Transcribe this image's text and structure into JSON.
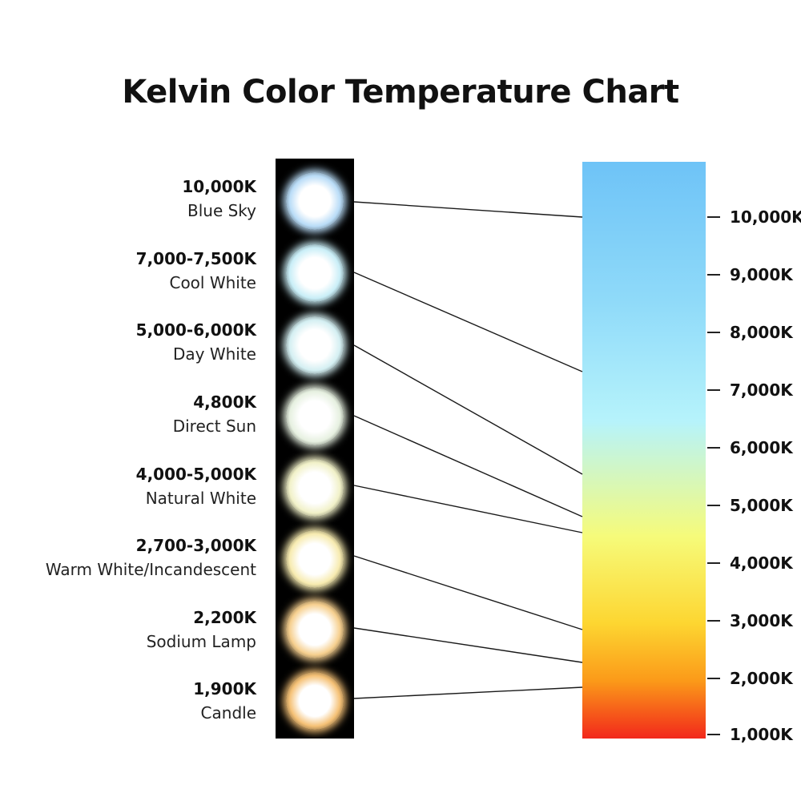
{
  "title": "Kelvin Color Temperature Chart",
  "sources": [
    {
      "kelvin": "10,000K",
      "name": "Blue Sky",
      "color": "#b9dcf7"
    },
    {
      "kelvin": "7,000-7,500K",
      "name": "Cool White",
      "color": "#c9eef7"
    },
    {
      "kelvin": "5,000-6,000K",
      "name": "Day White",
      "color": "#d4eff2"
    },
    {
      "kelvin": "4,800K",
      "name": "Direct Sun",
      "color": "#e6f0e0"
    },
    {
      "kelvin": "4,000-5,000K",
      "name": "Natural White",
      "color": "#f1f1c8"
    },
    {
      "kelvin": "2,700-3,000K",
      "name": "Warm White/Incandescent",
      "color": "#f7ebb0"
    },
    {
      "kelvin": "2,200K",
      "name": "Sodium Lamp",
      "color": "#f6cf8e"
    },
    {
      "kelvin": "1,900K",
      "name": "Candle",
      "color": "#f5c176"
    }
  ],
  "scale": {
    "ticks": [
      "10,000K",
      "9,000K",
      "8,000K",
      "7,000K",
      "6,000K",
      "5,000K",
      "4,000K",
      "3,000K",
      "2,000K",
      "1,000K"
    ],
    "gradient_colors": [
      "#6ec3f7",
      "#8fdaf9",
      "#b6f3fb",
      "#f6fb7a",
      "#fdd631",
      "#fb9a19",
      "#f2281b"
    ]
  }
}
